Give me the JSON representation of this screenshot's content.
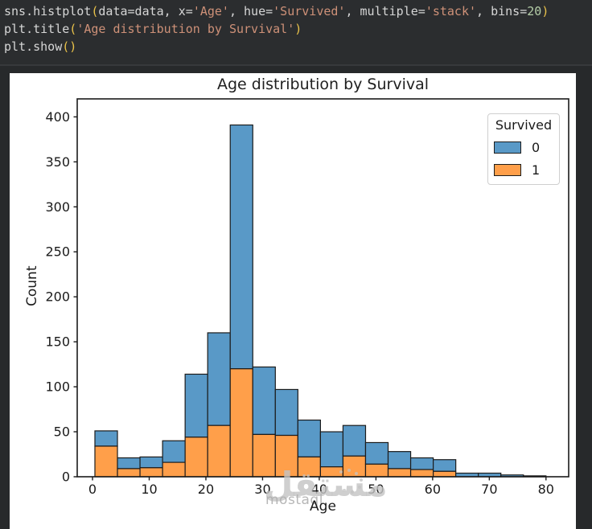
{
  "code": {
    "lines": [
      {
        "tokens": [
          {
            "style": "plain",
            "text": "sns.histplot"
          },
          {
            "style": "bracket",
            "text": "("
          },
          {
            "style": "plain",
            "text": "data=data, x="
          },
          {
            "style": "string",
            "text": "'Age'"
          },
          {
            "style": "plain",
            "text": ", hue="
          },
          {
            "style": "string",
            "text": "'Survived'"
          },
          {
            "style": "plain",
            "text": ", multiple="
          },
          {
            "style": "string",
            "text": "'stack'"
          },
          {
            "style": "plain",
            "text": ", bins="
          },
          {
            "style": "number",
            "text": "20"
          },
          {
            "style": "bracket",
            "text": ")"
          }
        ]
      },
      {
        "tokens": [
          {
            "style": "plain",
            "text": "plt.title"
          },
          {
            "style": "bracket",
            "text": "("
          },
          {
            "style": "string",
            "text": "'Age distribution by Survival'"
          },
          {
            "style": "bracket",
            "text": ")"
          }
        ]
      },
      {
        "tokens": [
          {
            "style": "plain",
            "text": "plt.show"
          },
          {
            "style": "bracket",
            "text": "("
          },
          {
            "style": "bracket",
            "text": ")"
          }
        ]
      }
    ]
  },
  "watermark": {
    "arabic": "مستقل",
    "latin": "mostaql"
  },
  "chart_data": {
    "type": "bar",
    "subtype": "stacked-histogram",
    "title": "Age distribution by Survival",
    "xlabel": "Age",
    "ylabel": "Count",
    "bin_start": 0.42,
    "bin_width": 3.979,
    "xlim": [
      -2.7,
      84.0
    ],
    "ylim": [
      0,
      420
    ],
    "xticks": [
      0,
      10,
      20,
      30,
      40,
      50,
      60,
      70,
      80
    ],
    "yticks": [
      0,
      50,
      100,
      150,
      200,
      250,
      300,
      350,
      400
    ],
    "grid": false,
    "colors": {
      "blue": "#5999c7",
      "orange": "#ff9f4a",
      "edge": "#1c1c1c",
      "spine": "#1a1a1a"
    },
    "legend": {
      "title": "Survived",
      "position": "upper right",
      "entries": [
        {
          "label": "0",
          "color": "#5999c7"
        },
        {
          "label": "1",
          "color": "#ff9f4a"
        }
      ]
    },
    "series": [
      {
        "name": "1",
        "color": "#ff9f4a",
        "values": [
          34,
          9,
          10,
          16,
          44,
          57,
          120,
          47,
          46,
          22,
          11,
          23,
          14,
          9,
          8,
          6,
          0,
          0,
          0,
          1
        ]
      },
      {
        "name": "0",
        "color": "#5999c7",
        "values": [
          17,
          12,
          12,
          24,
          70,
          103,
          271,
          75,
          51,
          41,
          39,
          34,
          24,
          19,
          13,
          13,
          4,
          4,
          2,
          0
        ]
      }
    ],
    "bin_totals": [
      51,
      21,
      22,
      40,
      114,
      160,
      391,
      122,
      97,
      63,
      50,
      57,
      38,
      28,
      21,
      19,
      4,
      4,
      2,
      1
    ]
  }
}
